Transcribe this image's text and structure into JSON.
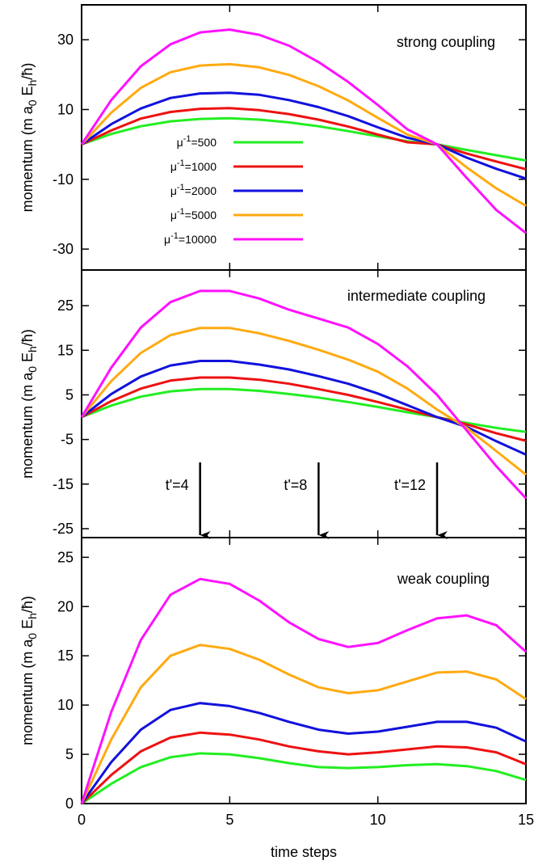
{
  "chart_data": [
    {
      "type": "line",
      "title": "strong coupling",
      "xlabel": "",
      "ylabel": "momentum (m a0 Eh/ħ)",
      "xlim": [
        0,
        15
      ],
      "ylim": [
        -36,
        40
      ],
      "yticks": [
        -30,
        -10,
        10,
        30
      ],
      "xticks": [],
      "grid": false,
      "legend_position": "left-center",
      "x": [
        0,
        1,
        2,
        3,
        4,
        5,
        6,
        7,
        8,
        9,
        10,
        11,
        12,
        13,
        14,
        15
      ],
      "series": [
        {
          "name": "μ⁻¹=500",
          "color": "#22ee22",
          "values": [
            0,
            3,
            5.2,
            6.6,
            7.3,
            7.5,
            7.1,
            6.3,
            5.2,
            3.8,
            2.3,
            0.9,
            0.0,
            -1.6,
            -3.1,
            -4.6
          ]
        },
        {
          "name": "μ⁻¹=1000",
          "color": "#ee1111",
          "values": [
            0,
            4,
            7.4,
            9.3,
            10.2,
            10.4,
            9.8,
            8.7,
            7.1,
            5.1,
            2.8,
            0.6,
            0.0,
            -2.6,
            -4.9,
            -7.1
          ]
        },
        {
          "name": "μ⁻¹=2000",
          "color": "#1111dd",
          "values": [
            0,
            5.8,
            10.3,
            13.3,
            14.6,
            14.8,
            14.2,
            12.7,
            10.7,
            8.1,
            4.9,
            1.9,
            0.0,
            -3.8,
            -7.0,
            -9.8
          ]
        },
        {
          "name": "μ⁻¹=5000",
          "color": "#ffaa11",
          "values": [
            0,
            9.1,
            16.2,
            20.7,
            22.6,
            23.0,
            22.1,
            19.9,
            16.7,
            12.6,
            7.6,
            2.8,
            0.0,
            -6.6,
            -12.6,
            -17.6
          ]
        },
        {
          "name": "μ⁻¹=10000",
          "color": "#ff11ff",
          "values": [
            0,
            12.7,
            22.4,
            28.7,
            32.1,
            32.9,
            31.4,
            28.3,
            23.6,
            17.9,
            11.3,
            4.3,
            0.0,
            -9.6,
            -18.8,
            -25.4
          ]
        }
      ]
    },
    {
      "type": "line",
      "title": "intermediate coupling",
      "xlabel": "",
      "ylabel": "momentum (m a0 Eh/ħ)",
      "xlim": [
        0,
        15
      ],
      "ylim": [
        -27,
        33
      ],
      "yticks": [
        -25,
        -15,
        -5,
        5,
        15,
        25
      ],
      "xticks": [],
      "grid": false,
      "x": [
        0,
        1,
        2,
        3,
        4,
        5,
        6,
        7,
        8,
        9,
        10,
        11,
        12,
        13,
        14,
        15
      ],
      "series": [
        {
          "name": "μ⁻¹=500",
          "color": "#22ee22",
          "values": [
            0,
            2.6,
            4.6,
            5.8,
            6.3,
            6.3,
            5.9,
            5.2,
            4.4,
            3.4,
            2.3,
            1.1,
            0.0,
            -1.3,
            -2.4,
            -3.3
          ]
        },
        {
          "name": "μ⁻¹=1000",
          "color": "#ee1111",
          "values": [
            0,
            3.6,
            6.4,
            8.2,
            8.9,
            8.9,
            8.4,
            7.5,
            6.3,
            5.0,
            3.4,
            1.7,
            0.0,
            -1.6,
            -3.6,
            -5.3
          ]
        },
        {
          "name": "μ⁻¹=2000",
          "color": "#1111dd",
          "values": [
            0,
            5.2,
            9.1,
            11.6,
            12.6,
            12.6,
            11.8,
            10.7,
            9.2,
            7.5,
            5.3,
            2.7,
            0.0,
            -2.2,
            -5.4,
            -8.4
          ]
        },
        {
          "name": "μ⁻¹=5000",
          "color": "#ffaa11",
          "values": [
            0,
            8.1,
            14.4,
            18.4,
            20.0,
            20.0,
            18.8,
            17.1,
            15.1,
            12.9,
            10.2,
            6.4,
            1.7,
            -2.4,
            -7.6,
            -12.9
          ]
        },
        {
          "name": "μ⁻¹=10000",
          "color": "#ff11ff",
          "values": [
            0,
            11.1,
            20.1,
            25.8,
            28.3,
            28.3,
            26.6,
            24.1,
            22.1,
            20.1,
            16.4,
            11.4,
            5.0,
            -3.0,
            -11.0,
            -18.2
          ]
        }
      ],
      "annotations": [
        {
          "text": "t'=4",
          "x": 4
        },
        {
          "text": "t'=8",
          "x": 8
        },
        {
          "text": "t'=12",
          "x": 12
        }
      ]
    },
    {
      "type": "line",
      "title": "weak coupling",
      "xlabel": "time steps",
      "ylabel": "momentum (m a0 Eh/ħ)",
      "xlim": [
        0,
        15
      ],
      "ylim": [
        0,
        27
      ],
      "yticks": [
        0,
        5,
        10,
        15,
        20,
        25
      ],
      "xticks": [
        0,
        5,
        10,
        15
      ],
      "grid": false,
      "x": [
        0,
        1,
        2,
        3,
        4,
        5,
        6,
        7,
        8,
        9,
        10,
        11,
        12,
        13,
        14,
        15
      ],
      "series": [
        {
          "name": "μ⁻¹=500",
          "color": "#22ee22",
          "values": [
            0,
            2.0,
            3.7,
            4.7,
            5.1,
            5.0,
            4.6,
            4.1,
            3.7,
            3.6,
            3.7,
            3.9,
            4.0,
            3.8,
            3.3,
            2.4
          ]
        },
        {
          "name": "μ⁻¹=1000",
          "color": "#ee1111",
          "values": [
            0,
            2.9,
            5.3,
            6.7,
            7.2,
            7.0,
            6.5,
            5.8,
            5.3,
            5.0,
            5.2,
            5.5,
            5.8,
            5.7,
            5.2,
            4.0
          ]
        },
        {
          "name": "μ⁻¹=2000",
          "color": "#1111dd",
          "values": [
            0,
            4.2,
            7.5,
            9.5,
            10.2,
            9.9,
            9.2,
            8.3,
            7.5,
            7.1,
            7.3,
            7.8,
            8.3,
            8.3,
            7.7,
            6.3
          ]
        },
        {
          "name": "μ⁻¹=5000",
          "color": "#ffaa11",
          "values": [
            0,
            6.5,
            11.8,
            15.0,
            16.1,
            15.7,
            14.6,
            13.1,
            11.8,
            11.2,
            11.5,
            12.4,
            13.3,
            13.4,
            12.6,
            10.6
          ]
        },
        {
          "name": "μ⁻¹=10000",
          "color": "#ff11ff",
          "values": [
            0,
            9.3,
            16.6,
            21.2,
            22.8,
            22.3,
            20.6,
            18.4,
            16.7,
            15.9,
            16.3,
            17.6,
            18.8,
            19.1,
            18.1,
            15.4
          ]
        }
      ]
    }
  ]
}
